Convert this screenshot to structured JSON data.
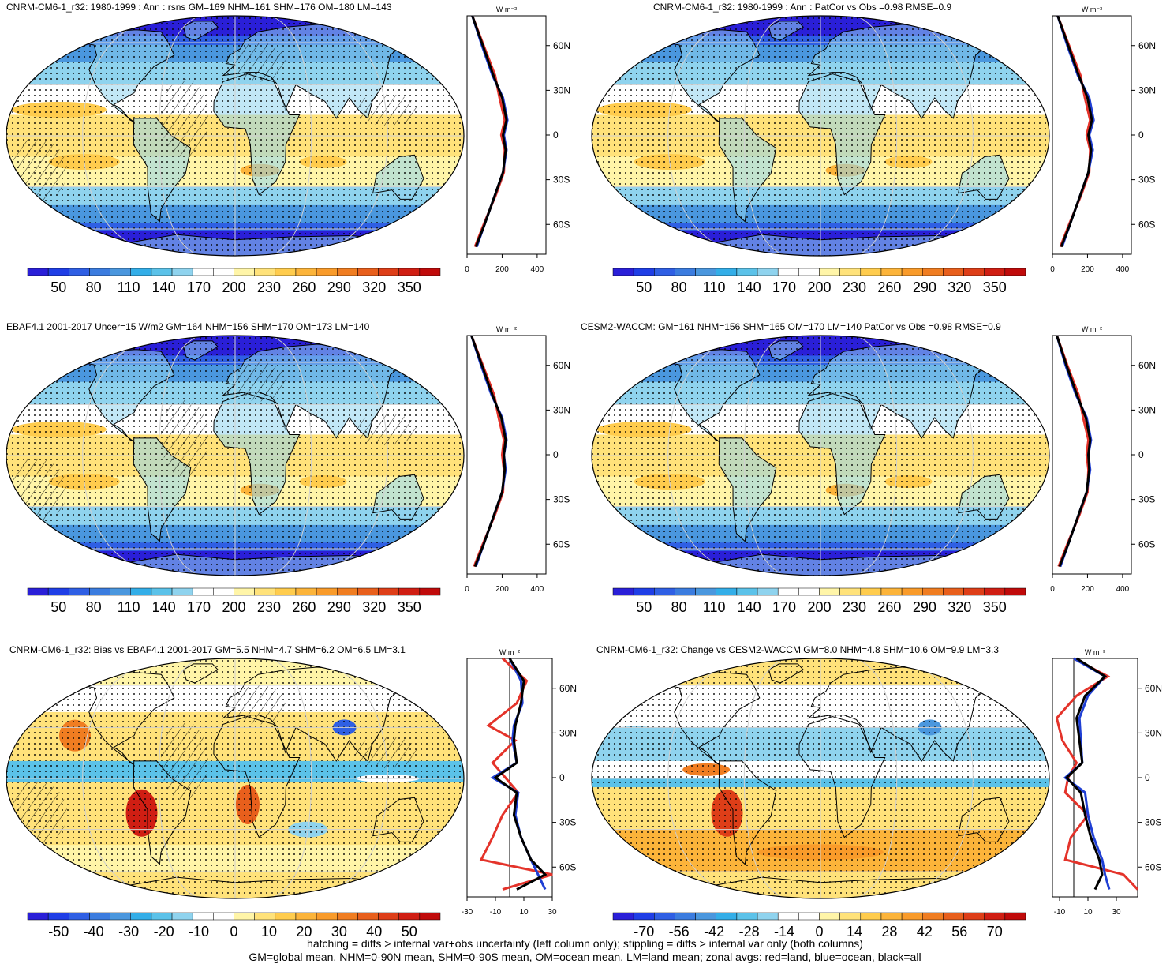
{
  "panels": [
    {
      "title": "CNRM-CM6-1_r32: 1980-1999 : Ann : rsns GM=169 NHM=161 SHM=176 OM=180 LM=143",
      "map_type": "absolute",
      "hatching": true,
      "colorbar_labels": [
        "50",
        "80",
        "110",
        "140",
        "170",
        "200",
        "230",
        "260",
        "290",
        "320",
        "350"
      ],
      "zonal_axis_ticks": [
        "0",
        "200",
        "400"
      ],
      "zonal_unit": "W m⁻²",
      "lat_labels": [
        "60N",
        "30N",
        "0",
        "30S",
        "60S"
      ]
    },
    {
      "title": "CNRM-CM6-1_r32: 1980-1999 : Ann : PatCor vs Obs =0.98 RMSE=0.9",
      "map_type": "absolute",
      "hatching": false,
      "colorbar_labels": [
        "50",
        "80",
        "110",
        "140",
        "170",
        "200",
        "230",
        "260",
        "290",
        "320",
        "350"
      ],
      "zonal_axis_ticks": [
        "0",
        "200",
        "400"
      ],
      "zonal_unit": "W m⁻²",
      "lat_labels": [
        "60N",
        "30N",
        "0",
        "30S",
        "60S"
      ]
    },
    {
      "title": "EBAF4.1 2001-2017 Uncer=15 W/m2 GM=164 NHM=156 SHM=170 OM=173 LM=140",
      "map_type": "absolute",
      "hatching": true,
      "colorbar_labels": [
        "50",
        "80",
        "110",
        "140",
        "170",
        "200",
        "230",
        "260",
        "290",
        "320",
        "350"
      ],
      "zonal_axis_ticks": [
        "0",
        "200",
        "400"
      ],
      "zonal_unit": "W m⁻²",
      "lat_labels": [
        "60N",
        "30N",
        "0",
        "30S",
        "60S"
      ]
    },
    {
      "title": "CESM2-WACCM: GM=161 NHM=156 SHM=165 OM=170 LM=140 PatCor vs Obs =0.98 RMSE=0.9",
      "map_type": "absolute",
      "hatching": false,
      "colorbar_labels": [
        "50",
        "80",
        "110",
        "140",
        "170",
        "200",
        "230",
        "260",
        "290",
        "320",
        "350"
      ],
      "zonal_axis_ticks": [
        "0",
        "200",
        "400"
      ],
      "zonal_unit": "W m⁻²",
      "lat_labels": [
        "60N",
        "30N",
        "0",
        "30S",
        "60S"
      ]
    },
    {
      "title": "CNRM-CM6-1_r32: Bias vs EBAF4.1 2001-2017 GM=5.5 NHM=4.7 SHM=6.2 OM=6.5 LM=3.1",
      "map_type": "bias",
      "hatching": true,
      "colorbar_labels": [
        "-50",
        "-40",
        "-30",
        "-20",
        "-10",
        "0",
        "10",
        "20",
        "30",
        "40",
        "50"
      ],
      "zonal_axis_ticks": [
        "-30",
        "-10",
        "10",
        "30"
      ],
      "zonal_unit": "W m⁻²",
      "lat_labels": [
        "60N",
        "30N",
        "0",
        "30S",
        "60S"
      ]
    },
    {
      "title": "CNRM-CM6-1_r32: Change vs CESM2-WACCM GM=8.0 NHM=4.8 SHM=10.6 OM=9.9 LM=3.3",
      "map_type": "change",
      "hatching": false,
      "colorbar_labels": [
        "-70",
        "-56",
        "-42",
        "-28",
        "-14",
        "0",
        "14",
        "28",
        "42",
        "56",
        "70"
      ],
      "zonal_axis_ticks": [
        "-10",
        "10",
        "30"
      ],
      "zonal_unit": "W m⁻²",
      "lat_labels": [
        "60N",
        "30N",
        "0",
        "30S",
        "60S"
      ]
    }
  ],
  "footer": {
    "line1": "hatching = diffs > internal var+obs uncertainty (left column only); stippling = diffs > internal var only (both columns)",
    "line2": "GM=global mean, NHM=0-90N mean, SHM=0-90S mean, OM=ocean mean, LM=land mean; zonal avgs: red=land, blue=ocean, black=all"
  },
  "colors": {
    "absolute_scale": [
      "#2a1fd8",
      "#1f3ee6",
      "#2f5fe4",
      "#3b7cdf",
      "#4a97de",
      "#33aee8",
      "#5bc2e9",
      "#8fd3ee",
      "#ffffff",
      "#ffffff",
      "#fff5a8",
      "#ffe27a",
      "#ffcc4d",
      "#fcb43a",
      "#f99b2a",
      "#f07d21",
      "#e85f1c",
      "#de3e18",
      "#d01e13",
      "#c00a0a"
    ],
    "diff_scale": [
      "#2a1fd8",
      "#1f3ee6",
      "#2f5fe4",
      "#3b7cdf",
      "#4a97de",
      "#33aee8",
      "#5bc2e9",
      "#8fd3ee",
      "#ffffff",
      "#ffffff",
      "#fff5a8",
      "#ffe27a",
      "#ffcc4d",
      "#fcb43a",
      "#f99b2a",
      "#f07d21",
      "#e85f1c",
      "#de3e18",
      "#d01e13",
      "#c00a0a"
    ],
    "land": "#e4332a",
    "ocean": "#1f3fd4",
    "all": "#000000"
  },
  "chart_data": [
    {
      "type": "heatmap",
      "panel": 0,
      "title": "CNRM-CM6-1_r32: 1980-1999 : Ann : rsns GM=169 NHM=161 SHM=176 OM=180 LM=143",
      "clim": [
        50,
        350
      ],
      "zonal": {
        "type": "line",
        "lat": [
          80,
          60,
          40,
          25,
          10,
          0,
          -10,
          -25,
          -40,
          -60,
          -75
        ],
        "all": [
          30,
          90,
          150,
          200,
          225,
          205,
          220,
          205,
          160,
          100,
          50
        ],
        "land": [
          30,
          95,
          160,
          185,
          215,
          195,
          215,
          210,
          165,
          95,
          45
        ],
        "ocean": [
          30,
          85,
          145,
          205,
          230,
          210,
          225,
          205,
          160,
          100,
          55
        ],
        "xlim": [
          0,
          450
        ]
      }
    },
    {
      "type": "heatmap",
      "panel": 1,
      "title": "CNRM-CM6-1_r32: 1980-1999 : Ann : PatCor vs Obs =0.98 RMSE=0.9",
      "clim": [
        50,
        350
      ],
      "zonal": {
        "type": "line",
        "lat": [
          80,
          60,
          40,
          25,
          10,
          0,
          -10,
          -25,
          -40,
          -60,
          -75
        ],
        "all": [
          30,
          90,
          150,
          200,
          225,
          205,
          220,
          205,
          160,
          100,
          50
        ],
        "land": [
          30,
          95,
          160,
          185,
          215,
          195,
          215,
          210,
          165,
          95,
          45
        ],
        "ocean": [
          30,
          85,
          145,
          210,
          235,
          210,
          230,
          205,
          160,
          100,
          55
        ],
        "xlim": [
          0,
          450
        ]
      }
    },
    {
      "type": "heatmap",
      "panel": 2,
      "title": "EBAF4.1 2001-2017 Uncer=15 W/m2 GM=164 NHM=156 SHM=170 OM=173 LM=140",
      "clim": [
        50,
        350
      ],
      "zonal": {
        "type": "line",
        "lat": [
          80,
          60,
          40,
          25,
          10,
          0,
          -10,
          -25,
          -40,
          -60,
          -75
        ],
        "all": [
          25,
          85,
          145,
          195,
          220,
          210,
          215,
          200,
          155,
          95,
          45
        ],
        "land": [
          25,
          90,
          155,
          180,
          210,
          200,
          210,
          205,
          160,
          90,
          40
        ],
        "ocean": [
          25,
          80,
          140,
          200,
          225,
          210,
          220,
          200,
          155,
          95,
          50
        ],
        "xlim": [
          0,
          450
        ]
      }
    },
    {
      "type": "heatmap",
      "panel": 3,
      "title": "CESM2-WACCM: GM=161 NHM=156 SHM=165 OM=170 LM=140 PatCor vs Obs =0.98 RMSE=0.9",
      "clim": [
        50,
        350
      ],
      "zonal": {
        "type": "line",
        "lat": [
          80,
          60,
          40,
          25,
          10,
          0,
          -10,
          -25,
          -40,
          -60,
          -75
        ],
        "all": [
          25,
          80,
          140,
          190,
          215,
          205,
          210,
          195,
          150,
          90,
          40
        ],
        "land": [
          25,
          85,
          150,
          175,
          205,
          195,
          205,
          200,
          155,
          85,
          35
        ],
        "ocean": [
          25,
          75,
          135,
          195,
          220,
          205,
          215,
          195,
          150,
          90,
          45
        ],
        "xlim": [
          0,
          450
        ]
      }
    },
    {
      "type": "heatmap",
      "panel": 4,
      "title": "CNRM-CM6-1_r32: Bias vs EBAF4.1 2001-2017 GM=5.5 NHM=4.7 SHM=6.2 OM=6.5 LM=3.1",
      "clim": [
        -50,
        50
      ],
      "zonal": {
        "type": "line",
        "lat": [
          80,
          65,
          50,
          35,
          25,
          10,
          0,
          -10,
          -25,
          -40,
          -55,
          -65,
          -75
        ],
        "all": [
          0,
          10,
          8,
          4,
          3,
          5,
          -10,
          5,
          3,
          8,
          15,
          25,
          5
        ],
        "land": [
          -5,
          12,
          5,
          -15,
          4,
          -12,
          -3,
          6,
          -5,
          -12,
          -20,
          30,
          -5
        ],
        "ocean": [
          0,
          8,
          9,
          3,
          2,
          5,
          -12,
          6,
          4,
          8,
          15,
          20,
          25
        ],
        "xlim": [
          -30,
          30
        ]
      }
    },
    {
      "type": "heatmap",
      "panel": 5,
      "title": "CNRM-CM6-1_r32: Change vs CESM2-WACCM GM=8.0 NHM=4.8 SHM=10.6 OM=9.9 LM=3.3",
      "clim": [
        -70,
        70
      ],
      "zonal": {
        "type": "line",
        "lat": [
          80,
          68,
          55,
          40,
          25,
          10,
          0,
          -10,
          -25,
          -40,
          -55,
          -65,
          -75
        ],
        "all": [
          2,
          22,
          8,
          2,
          4,
          6,
          -5,
          5,
          8,
          12,
          18,
          20,
          15
        ],
        "land": [
          0,
          24,
          2,
          -12,
          -8,
          2,
          -4,
          -6,
          10,
          -2,
          -6,
          35,
          45
        ],
        "ocean": [
          0,
          22,
          10,
          4,
          5,
          6,
          -6,
          8,
          10,
          14,
          20,
          22,
          25
        ],
        "xlim": [
          -15,
          45
        ]
      }
    }
  ]
}
